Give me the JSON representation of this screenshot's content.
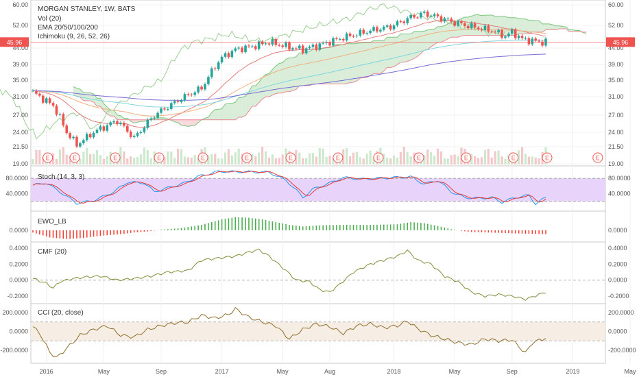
{
  "chart_data": {
    "type": "line",
    "symbol": "MORGAN STANLEY, 1W, BATS",
    "indicator_labels": [
      "Vol (20)",
      "EMA 20/50/100/200",
      "Ichimoku (9, 26, 52, 26)"
    ],
    "last_price": "45.96",
    "x_ticks": [
      "2016",
      "May",
      "Sep",
      "2017",
      "May",
      "Aug",
      "2018",
      "May",
      "Sep",
      "2019",
      "May"
    ],
    "price_axis": [
      "60.00",
      "52.00",
      "44.00",
      "39.00",
      "35.00",
      "31.00",
      "27.00",
      "24.00",
      "21.50",
      "19.00"
    ],
    "earnings_marker": "E",
    "panes": {
      "stoch": {
        "label": "Stoch (14, 3, 3)",
        "ticks": [
          "80.0000",
          "40.0000"
        ],
        "band": [
          20,
          80
        ]
      },
      "ewo": {
        "label": "EWO_LB",
        "ticks": [
          "0.0000"
        ]
      },
      "cmf": {
        "label": "CMF (20)",
        "ticks": [
          "0.4000",
          "0.2000",
          "0.0000",
          "-0.2000"
        ]
      },
      "cci": {
        "label": "CCI (20, close)",
        "ticks": [
          "200.0000",
          "0.0000",
          "-200.0000"
        ],
        "band": [
          -100,
          100
        ]
      }
    },
    "close_anchors": [
      [
        0,
        32
      ],
      [
        6,
        29
      ],
      [
        10,
        24
      ],
      [
        13,
        21.8
      ],
      [
        18,
        24
      ],
      [
        25,
        26
      ],
      [
        30,
        23
      ],
      [
        36,
        27
      ],
      [
        45,
        31
      ],
      [
        50,
        33
      ],
      [
        54,
        38.5
      ],
      [
        56,
        41
      ],
      [
        60,
        43.5
      ],
      [
        65,
        44.5
      ],
      [
        70,
        46
      ],
      [
        75,
        44.5
      ],
      [
        80,
        43.5
      ],
      [
        85,
        45
      ],
      [
        92,
        47.5
      ],
      [
        100,
        50
      ],
      [
        106,
        51.5
      ],
      [
        112,
        55
      ],
      [
        116,
        56.5
      ],
      [
        120,
        55
      ],
      [
        125,
        53
      ],
      [
        130,
        51.5
      ],
      [
        136,
        50
      ],
      [
        140,
        48
      ],
      [
        142,
        49.5
      ],
      [
        145,
        47
      ],
      [
        150,
        46
      ],
      [
        152,
        46
      ]
    ],
    "stoch_anchors": [
      [
        0,
        62
      ],
      [
        4,
        68
      ],
      [
        8,
        45
      ],
      [
        13,
        15
      ],
      [
        18,
        22
      ],
      [
        24,
        45
      ],
      [
        28,
        70
      ],
      [
        33,
        68
      ],
      [
        36,
        45
      ],
      [
        40,
        55
      ],
      [
        45,
        68
      ],
      [
        49,
        85
      ],
      [
        55,
        98
      ],
      [
        64,
        97
      ],
      [
        70,
        96
      ],
      [
        75,
        75
      ],
      [
        78,
        50
      ],
      [
        80,
        30
      ],
      [
        83,
        52
      ],
      [
        88,
        68
      ],
      [
        92,
        82
      ],
      [
        98,
        78
      ],
      [
        102,
        80
      ],
      [
        107,
        82
      ],
      [
        112,
        84
      ],
      [
        116,
        65
      ],
      [
        120,
        75
      ],
      [
        124,
        45
      ],
      [
        128,
        30
      ],
      [
        132,
        28
      ],
      [
        136,
        30
      ],
      [
        139,
        18
      ],
      [
        143,
        30
      ],
      [
        147,
        36
      ],
      [
        149,
        14
      ],
      [
        152,
        30
      ]
    ],
    "ewo_anchors": [
      [
        0,
        -0.4
      ],
      [
        5,
        -1.3
      ],
      [
        10,
        -1.6
      ],
      [
        15,
        -1.4
      ],
      [
        20,
        -1.0
      ],
      [
        26,
        -0.7
      ],
      [
        30,
        -0.4
      ],
      [
        34,
        -0.2
      ],
      [
        38,
        0.1
      ],
      [
        44,
        0.4
      ],
      [
        50,
        1.0
      ],
      [
        56,
        2.0
      ],
      [
        60,
        2.4
      ],
      [
        64,
        2.3
      ],
      [
        68,
        2.0
      ],
      [
        72,
        1.5
      ],
      [
        76,
        1.0
      ],
      [
        80,
        0.7
      ],
      [
        85,
        0.9
      ],
      [
        92,
        1.0
      ],
      [
        100,
        1.0
      ],
      [
        108,
        1.1
      ],
      [
        112,
        1.5
      ],
      [
        116,
        1.3
      ],
      [
        120,
        0.8
      ],
      [
        124,
        0.2
      ],
      [
        127,
        -0.1
      ],
      [
        130,
        -0.3
      ],
      [
        135,
        -0.4
      ],
      [
        140,
        -0.5
      ],
      [
        145,
        -0.6
      ],
      [
        152,
        -0.7
      ]
    ],
    "cmf_anchors": [
      [
        0,
        0.02
      ],
      [
        4,
        -0.04
      ],
      [
        6,
        -0.1
      ],
      [
        8,
        -0.02
      ],
      [
        12,
        0.02
      ],
      [
        16,
        0.04
      ],
      [
        20,
        0.05
      ],
      [
        25,
        0.0
      ],
      [
        30,
        0.02
      ],
      [
        35,
        0.05
      ],
      [
        40,
        0.1
      ],
      [
        46,
        0.12
      ],
      [
        50,
        0.25
      ],
      [
        56,
        0.28
      ],
      [
        60,
        0.3
      ],
      [
        64,
        0.35
      ],
      [
        67,
        0.38
      ],
      [
        70,
        0.3
      ],
      [
        75,
        0.12
      ],
      [
        78,
        0.0
      ],
      [
        82,
        -0.02
      ],
      [
        85,
        -0.12
      ],
      [
        88,
        -0.15
      ],
      [
        91,
        -0.05
      ],
      [
        95,
        0.1
      ],
      [
        100,
        0.2
      ],
      [
        104,
        0.25
      ],
      [
        108,
        0.3
      ],
      [
        111,
        0.37
      ],
      [
        114,
        0.25
      ],
      [
        118,
        0.2
      ],
      [
        122,
        0.05
      ],
      [
        126,
        -0.02
      ],
      [
        130,
        -0.15
      ],
      [
        134,
        -0.2
      ],
      [
        138,
        -0.18
      ],
      [
        142,
        -0.2
      ],
      [
        146,
        -0.24
      ],
      [
        150,
        -0.18
      ],
      [
        152,
        -0.15
      ]
    ],
    "cci_anchors": [
      [
        0,
        50
      ],
      [
        2,
        -20
      ],
      [
        5,
        -220
      ],
      [
        7,
        -280
      ],
      [
        10,
        -180
      ],
      [
        14,
        -40
      ],
      [
        18,
        20
      ],
      [
        22,
        60
      ],
      [
        26,
        -40
      ],
      [
        30,
        -60
      ],
      [
        34,
        20
      ],
      [
        38,
        60
      ],
      [
        42,
        90
      ],
      [
        46,
        100
      ],
      [
        50,
        170
      ],
      [
        54,
        140
      ],
      [
        58,
        180
      ],
      [
        60,
        240
      ],
      [
        64,
        150
      ],
      [
        68,
        100
      ],
      [
        72,
        60
      ],
      [
        76,
        -80
      ],
      [
        80,
        20
      ],
      [
        84,
        80
      ],
      [
        88,
        50
      ],
      [
        92,
        -20
      ],
      [
        96,
        60
      ],
      [
        100,
        80
      ],
      [
        104,
        40
      ],
      [
        108,
        60
      ],
      [
        111,
        110
      ],
      [
        114,
        30
      ],
      [
        118,
        -40
      ],
      [
        122,
        -80
      ],
      [
        126,
        -120
      ],
      [
        130,
        -140
      ],
      [
        134,
        -80
      ],
      [
        138,
        -100
      ],
      [
        142,
        -90
      ],
      [
        146,
        -230
      ],
      [
        148,
        -120
      ],
      [
        152,
        -70
      ]
    ]
  }
}
